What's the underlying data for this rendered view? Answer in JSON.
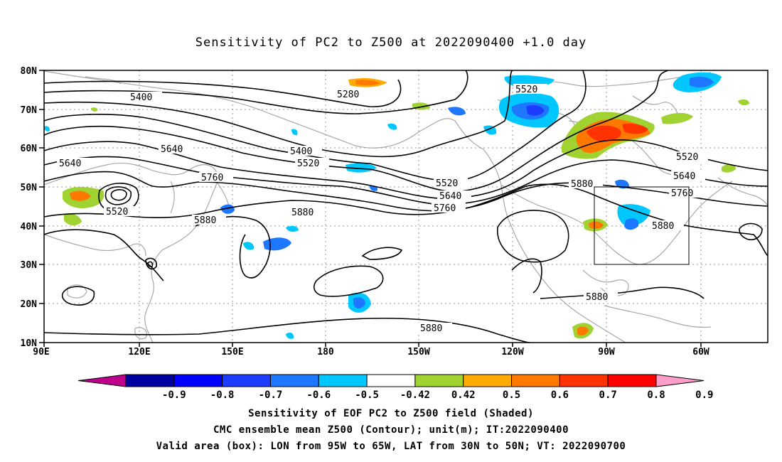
{
  "title": "Sensitivity of PC2 to Z500 at 2022090400 +1.0 day",
  "axes": {
    "lat_labels": [
      "80N",
      "70N",
      "60N",
      "50N",
      "40N",
      "30N",
      "20N",
      "10N"
    ],
    "lon_labels": [
      "90E",
      "120E",
      "150E",
      "180",
      "150W",
      "120W",
      "90W",
      "60W"
    ]
  },
  "contour_labels": [
    "5400",
    "5280",
    "5520",
    "5640",
    "5400",
    "5520",
    "5640",
    "5520",
    "5760",
    "5880",
    "5880",
    "5520",
    "5640",
    "5760",
    "5880",
    "5520",
    "5640",
    "5760",
    "5880",
    "5880",
    "5880"
  ],
  "colorbar": {
    "labels": [
      "-0.9",
      "-0.8",
      "-0.7",
      "-0.6",
      "-0.5",
      "-0.42",
      "0.42",
      "0.5",
      "0.6",
      "0.7",
      "0.8",
      "0.9"
    ],
    "colors": [
      "#c0008c",
      "#00009e",
      "#0000ff",
      "#1e3cff",
      "#1e78ff",
      "#00c8ff",
      "#ffffff",
      "#a0d232",
      "#ffaa00",
      "#ff7800",
      "#ff3200",
      "#ff0000",
      "#ff9ec8"
    ]
  },
  "caption": {
    "line1": "Sensitivity of EOF PC2 to Z500 field (Shaded)",
    "line2": "CMC ensemble mean Z500 (Contour); unit(m); IT:2022090400",
    "line3": "Valid area (box): LON from 95W to 65W, LAT from 30N to 50N; VT: 2022090700"
  }
}
